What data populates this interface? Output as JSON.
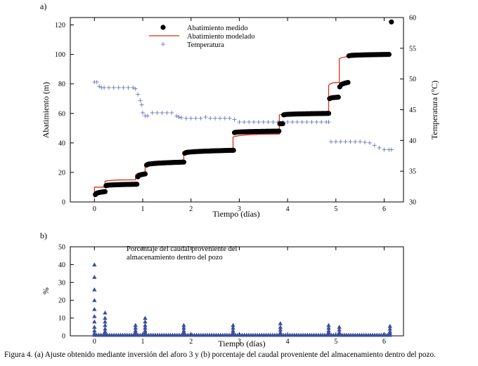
{
  "caption": "Figura 4. (a) Ajuste obtenido mediante inversión del aforo 3 y (b) porcentaje del caudal proveniente del almacenamiento dentro del pozo.",
  "colors": {
    "measured": "#000000",
    "modeled": "#d2321e",
    "temperature": "#6b78b8",
    "percent": "#3a4f9a",
    "axis": "#000000"
  },
  "chart_data": [
    {
      "panel_label": "a)",
      "type": "scatter",
      "xlabel": "Tiempo (días)",
      "ylabel": "Abatimiento (m)",
      "y2label": "Temperatura (°C)",
      "xlim": [
        -0.5,
        6.4
      ],
      "ylim": [
        0,
        125
      ],
      "y2lim": [
        30,
        60
      ],
      "xticks": [
        0,
        1,
        2,
        3,
        4,
        5,
        6
      ],
      "yticks": [
        0,
        20,
        40,
        60,
        80,
        100,
        120
      ],
      "y2ticks": [
        30,
        35,
        40,
        45,
        50,
        55,
        60
      ],
      "legend": {
        "position": "top-center",
        "entries": [
          "Abatimiento medido",
          "Abatimiento modelado",
          "Temperatura"
        ]
      },
      "measured_segments": [
        {
          "x0": 0.02,
          "x1": 0.22,
          "y0": 5,
          "y1": 7,
          "n": 9
        },
        {
          "x0": 0.24,
          "x1": 0.88,
          "y0": 11,
          "y1": 12,
          "n": 26
        },
        {
          "x0": 0.9,
          "x1": 1.05,
          "y0": 17,
          "y1": 19,
          "n": 7
        },
        {
          "x0": 1.08,
          "x1": 1.85,
          "y0": 25,
          "y1": 27,
          "n": 30
        },
        {
          "x0": 1.87,
          "x1": 2.88,
          "y0": 33,
          "y1": 35,
          "n": 38
        },
        {
          "x0": 2.9,
          "x1": 3.82,
          "y0": 47,
          "y1": 48,
          "n": 34
        },
        {
          "x0": 3.84,
          "x1": 3.9,
          "y0": 53,
          "y1": 53,
          "n": 3
        },
        {
          "x0": 3.92,
          "x1": 4.85,
          "y0": 59,
          "y1": 60,
          "n": 34
        },
        {
          "x0": 4.87,
          "x1": 5.05,
          "y0": 70,
          "y1": 71,
          "n": 7
        },
        {
          "x0": 5.08,
          "x1": 5.25,
          "y0": 78,
          "y1": 81,
          "n": 6
        },
        {
          "x0": 5.27,
          "x1": 6.1,
          "y0": 99,
          "y1": 100,
          "n": 32
        },
        {
          "x0": 6.15,
          "x1": 6.15,
          "y0": 122,
          "y1": 122,
          "n": 1
        }
      ],
      "modeled_steps": [
        {
          "x": 0.0,
          "y0": 3,
          "y1": 10
        },
        {
          "x": 0.22,
          "y0": 10,
          "y1": 14
        },
        {
          "x": 0.85,
          "y0": 15,
          "y1": 18
        },
        {
          "x": 1.05,
          "y0": 20,
          "y1": 26
        },
        {
          "x": 1.85,
          "y0": 27,
          "y1": 33
        },
        {
          "x": 2.87,
          "y0": 35,
          "y1": 44
        },
        {
          "x": 3.83,
          "y0": 46,
          "y1": 59
        },
        {
          "x": 4.85,
          "y0": 61,
          "y1": 79
        },
        {
          "x": 5.07,
          "y0": 81,
          "y1": 97
        },
        {
          "x": 6.15,
          "y0": 100,
          "y1": 100
        }
      ],
      "temperature": {
        "x": [
          0.0,
          0.05,
          0.1,
          0.15,
          0.2,
          0.3,
          0.4,
          0.5,
          0.6,
          0.7,
          0.8,
          0.85,
          0.9,
          0.95,
          0.98,
          1.0,
          1.05,
          1.1,
          1.2,
          1.3,
          1.4,
          1.5,
          1.6,
          1.7,
          1.75,
          1.8,
          1.9,
          2.0,
          2.1,
          2.2,
          2.3,
          2.4,
          2.5,
          2.6,
          2.7,
          2.8,
          2.9,
          3.0,
          3.1,
          3.2,
          3.3,
          3.4,
          3.5,
          3.6,
          3.7,
          3.8,
          3.9,
          4.0,
          4.1,
          4.2,
          4.3,
          4.4,
          4.5,
          4.6,
          4.7,
          4.8,
          4.85,
          4.9,
          5.0,
          5.1,
          5.2,
          5.3,
          5.4,
          5.5,
          5.6,
          5.7,
          5.8,
          5.9,
          6.0,
          6.1,
          6.15
        ],
        "y": [
          49.5,
          49.5,
          48.8,
          48.6,
          48.6,
          48.6,
          48.6,
          48.6,
          48.6,
          48.6,
          48.6,
          48.4,
          47.5,
          46.5,
          45.8,
          44.5,
          44.0,
          44.0,
          44.5,
          44.5,
          44.5,
          44.5,
          44.5,
          44.0,
          43.8,
          43.7,
          43.6,
          43.6,
          43.6,
          43.6,
          43.8,
          43.6,
          43.6,
          43.6,
          43.6,
          43.6,
          43.4,
          43.0,
          43.0,
          43.0,
          43.0,
          43.0,
          43.0,
          43.0,
          43.0,
          43.0,
          43.0,
          43.0,
          43.0,
          43.0,
          43.0,
          43.0,
          43.0,
          43.0,
          43.0,
          43.0,
          43.0,
          39.8,
          39.8,
          39.8,
          39.8,
          39.8,
          39.8,
          39.8,
          39.7,
          39.6,
          39.2,
          38.8,
          38.5,
          38.5,
          38.5
        ]
      }
    },
    {
      "panel_label": "b)",
      "type": "scatter",
      "title": "Porcentaje del caudal proveniente del almacenamiento dentro del pozo",
      "xlabel": "Tiempo (días)",
      "ylabel": "%",
      "xlim": [
        -0.5,
        6.4
      ],
      "ylim": [
        0,
        50
      ],
      "xticks": [
        0,
        1,
        2,
        3,
        4,
        5,
        6
      ],
      "yticks": [
        0,
        10,
        20,
        30,
        40,
        50
      ],
      "spikes": [
        {
          "x": 0.0,
          "values": [
            40,
            33,
            26,
            20,
            15,
            11,
            8,
            5,
            3,
            1.5
          ]
        },
        {
          "x": 0.22,
          "values": [
            13,
            10,
            8,
            6,
            4,
            2.5,
            1.5
          ]
        },
        {
          "x": 0.85,
          "values": [
            6,
            4.5,
            3,
            2,
            1
          ]
        },
        {
          "x": 1.05,
          "values": [
            10,
            8,
            6,
            4.5,
            3,
            2,
            1
          ]
        },
        {
          "x": 1.85,
          "values": [
            6,
            4.5,
            3,
            2,
            1
          ]
        },
        {
          "x": 2.87,
          "values": [
            6,
            4.5,
            3,
            2,
            1
          ]
        },
        {
          "x": 3.85,
          "values": [
            7,
            5,
            3.5,
            2,
            1
          ]
        },
        {
          "x": 4.85,
          "values": [
            6,
            4.5,
            3,
            2,
            1
          ]
        },
        {
          "x": 5.07,
          "values": [
            5,
            3.5,
            2,
            1
          ]
        },
        {
          "x": 6.12,
          "values": [
            5.5,
            4,
            2.5,
            1.5
          ]
        }
      ],
      "baseline_value": 0.5
    }
  ]
}
